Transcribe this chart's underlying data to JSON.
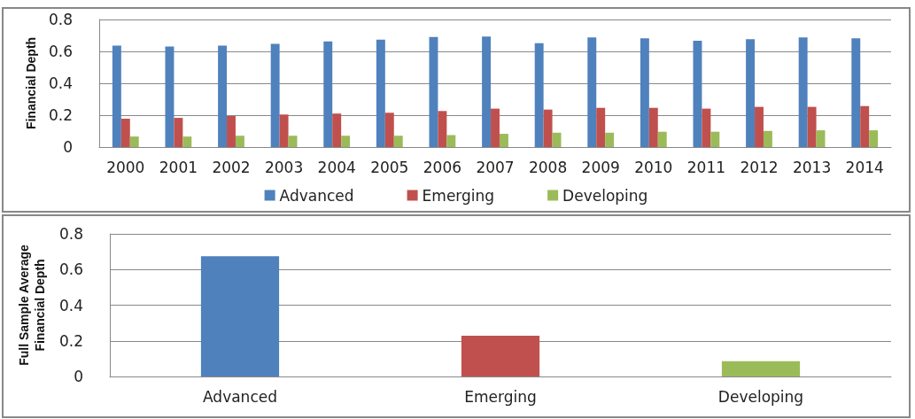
{
  "chart_data": [
    {
      "type": "bar",
      "ylabel": "Financial Depth",
      "categories": [
        "2000",
        "2001",
        "2002",
        "2003",
        "2004",
        "2005",
        "2006",
        "2007",
        "2008",
        "2009",
        "2010",
        "2011",
        "2012",
        "2013",
        "2014"
      ],
      "series": [
        {
          "name": "Advanced",
          "color": "#4f81bd",
          "values": [
            0.636,
            0.631,
            0.636,
            0.647,
            0.663,
            0.674,
            0.69,
            0.693,
            0.652,
            0.688,
            0.682,
            0.666,
            0.677,
            0.688,
            0.682
          ]
        },
        {
          "name": "Emerging",
          "color": "#c0504d",
          "values": [
            0.178,
            0.183,
            0.195,
            0.204,
            0.21,
            0.215,
            0.226,
            0.241,
            0.235,
            0.246,
            0.246,
            0.241,
            0.252,
            0.252,
            0.257
          ]
        },
        {
          "name": "Developing",
          "color": "#9bbb59",
          "values": [
            0.066,
            0.066,
            0.071,
            0.071,
            0.071,
            0.071,
            0.075,
            0.083,
            0.09,
            0.09,
            0.096,
            0.096,
            0.101,
            0.105,
            0.105
          ]
        }
      ],
      "ylim": [
        0,
        0.8
      ],
      "yticks": [
        0,
        0.2,
        0.4,
        0.6,
        0.8
      ],
      "grid": "y",
      "legend": "bottom"
    },
    {
      "type": "bar",
      "ylabel": "Full Sample Average\nFinancial Depth",
      "categories": [
        "Advanced",
        "Emerging",
        "Developing"
      ],
      "values": [
        0.674,
        0.229,
        0.086
      ],
      "colors": [
        "#4f81bd",
        "#c0504d",
        "#9bbb59"
      ],
      "ylim": [
        0,
        0.8
      ],
      "yticks": [
        0,
        0.2,
        0.4,
        0.6,
        0.8
      ],
      "grid": "y"
    }
  ]
}
